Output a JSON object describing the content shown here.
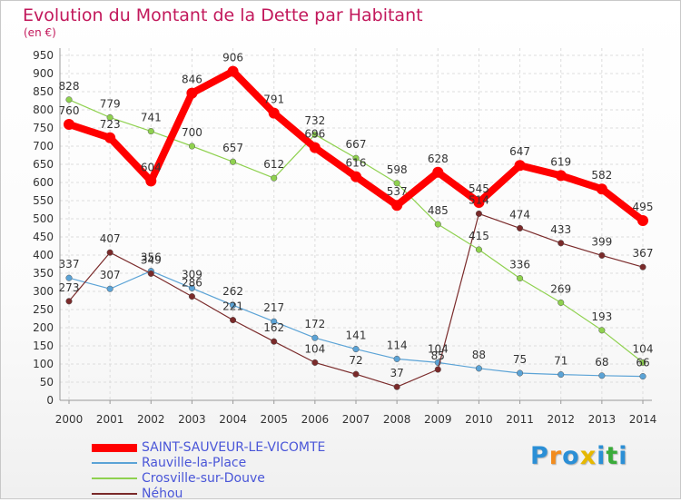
{
  "header": {
    "title": "Evolution du Montant de la Dette par Habitant",
    "unit": "(en €)"
  },
  "brand": {
    "letters": [
      "P",
      "r",
      "o",
      "x",
      "i",
      "t",
      "i"
    ],
    "colors": [
      "#2b8fd6",
      "#f28c1e",
      "#2b8fd6",
      "#e6b800",
      "#2b8fd6",
      "#3aab3a",
      "#2b8fd6"
    ]
  },
  "chart_data": {
    "type": "line",
    "title": "Evolution du Montant de la Dette par Habitant",
    "ylabel": "(en €)",
    "xlabel": "",
    "x": [
      "2000",
      "2001",
      "2002",
      "2003",
      "2004",
      "2005",
      "2006",
      "2007",
      "2008",
      "2009",
      "2010",
      "2011",
      "2012",
      "2013",
      "2014"
    ],
    "ylim": [
      0,
      950
    ],
    "yticks": [
      0,
      50,
      100,
      150,
      200,
      250,
      300,
      350,
      400,
      450,
      500,
      550,
      600,
      650,
      700,
      750,
      800,
      850,
      900,
      950
    ],
    "grid": true,
    "legend_position": "bottom-left",
    "series": [
      {
        "name": "SAINT-SAUVEUR-LE-VICOMTE",
        "color": "#ff0000",
        "values": [
          760,
          723,
          604,
          846,
          906,
          791,
          696,
          616,
          537,
          628,
          545,
          647,
          619,
          582,
          495
        ]
      },
      {
        "name": "Rauville-la-Place",
        "color": "#5ba3d6",
        "values": [
          337,
          307,
          356,
          309,
          262,
          217,
          172,
          141,
          114,
          104,
          88,
          75,
          71,
          68,
          66
        ]
      },
      {
        "name": "Crosville-sur-Douve",
        "color": "#8fd14f",
        "values": [
          828,
          779,
          741,
          700,
          657,
          612,
          732,
          667,
          598,
          485,
          415,
          336,
          269,
          193,
          104
        ]
      },
      {
        "name": "Néhou",
        "color": "#7a2a2a",
        "values": [
          273,
          407,
          349,
          286,
          221,
          162,
          104,
          72,
          37,
          85,
          514,
          474,
          433,
          399,
          367
        ]
      }
    ]
  }
}
